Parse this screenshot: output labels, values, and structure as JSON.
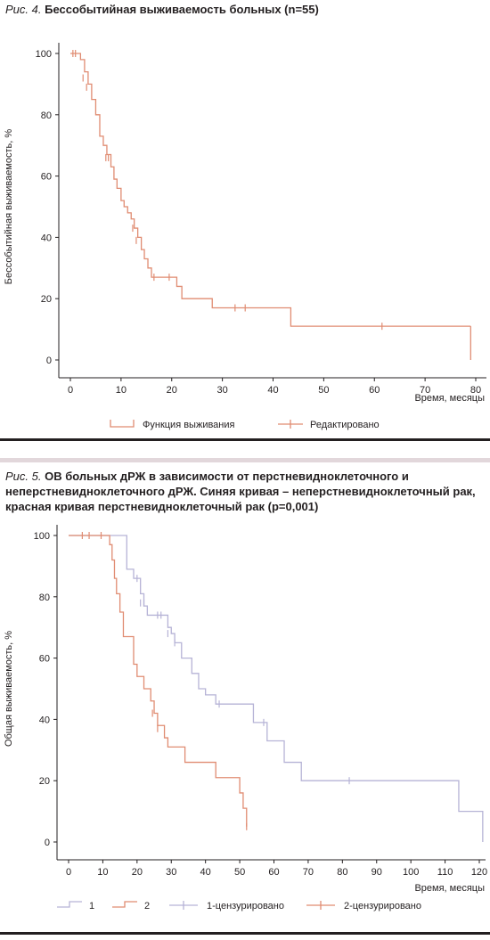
{
  "figure4": {
    "caption_prefix": "Рис. 4.",
    "caption_text": "Бессобытийная выживаемость больных (n=55)",
    "chart_data": {
      "type": "line",
      "title": "Бессобытийная выживаемость больных (n=55)",
      "xlabel": "Время, месяцы",
      "ylabel": "Бессобытийная выживаемость, %",
      "xlim": [
        0,
        80
      ],
      "ylim": [
        0,
        100
      ],
      "xticks": [
        0,
        10,
        20,
        30,
        40,
        50,
        60,
        70,
        80
      ],
      "yticks": [
        0,
        20,
        40,
        60,
        80,
        100
      ],
      "grid": false,
      "legend_position": "bottom",
      "colors": {
        "curve": "#e08c72"
      },
      "series": [
        {
          "name": "Функция выживания",
          "x": [
            0,
            2,
            2.8,
            3.5,
            4.2,
            5,
            5.8,
            6.5,
            7.2,
            8,
            8.6,
            9.2,
            10,
            10.6,
            11.3,
            12,
            12.6,
            13.3,
            14,
            14.6,
            15.3,
            16,
            16.7,
            17.4,
            20,
            21,
            22,
            28,
            43.5,
            79
          ],
          "y": [
            100,
            98,
            94,
            90,
            85,
            80,
            73,
            70,
            67,
            63,
            59,
            56,
            52,
            50,
            48,
            46,
            43,
            40,
            36,
            33,
            30,
            27,
            27,
            27,
            27,
            24,
            20,
            17,
            11,
            11
          ]
        },
        {
          "name": "Редактировано",
          "x": [
            0.5,
            1,
            2.5,
            3.2,
            7,
            7.5,
            12.3,
            13,
            16.5,
            19.5,
            32.5,
            34.5,
            61.5
          ],
          "y": [
            100,
            100,
            92,
            89,
            66,
            66,
            43,
            39,
            27,
            27,
            17,
            17,
            11
          ]
        }
      ]
    }
  },
  "figure5": {
    "caption_prefix": "Рис. 5.",
    "caption_text": "ОВ больных дРЖ в зависимости от перстневидноклеточного и неперстневидноклеточного дРЖ. Синяя кривая – неперстневидноклеточный рак, красная кривая перстневидноклеточный рак (p=0,001)",
    "chart_data": {
      "type": "line",
      "title": "",
      "xlabel": "Время, месяцы",
      "ylabel": "Общая выживаемость, %",
      "xlim": [
        0,
        120
      ],
      "ylim": [
        0,
        100
      ],
      "xticks": [
        0,
        10,
        20,
        30,
        40,
        50,
        60,
        70,
        80,
        90,
        100,
        110,
        120
      ],
      "yticks": [
        0,
        20,
        40,
        60,
        80,
        100
      ],
      "grid": false,
      "legend_position": "bottom",
      "colors": {
        "blue": "#b6b3d6",
        "red": "#e08c72"
      },
      "series": [
        {
          "name": "1",
          "x": [
            0,
            16,
            17,
            19,
            21,
            22,
            23,
            28,
            29,
            30,
            31,
            33,
            36,
            38,
            40,
            43,
            54,
            58,
            63,
            68,
            114,
            121
          ],
          "y": [
            100,
            100,
            89,
            86,
            81,
            77,
            74,
            74,
            70,
            68,
            65,
            60,
            55,
            50,
            48,
            45,
            39,
            33,
            26,
            20,
            10,
            0
          ],
          "color": "blue"
        },
        {
          "name": "2",
          "x": [
            0,
            11,
            12,
            12.7,
            13.4,
            14,
            15,
            16,
            19,
            20,
            22,
            24,
            25,
            26,
            28,
            29,
            34,
            43,
            50,
            51,
            52
          ],
          "y": [
            100,
            100,
            97,
            92,
            86,
            81,
            75,
            67,
            58,
            54,
            50,
            46,
            42,
            38,
            34,
            31,
            26,
            21,
            16,
            11,
            5
          ],
          "color": "red"
        },
        {
          "name": "1-цензурировано",
          "x": [
            20,
            21,
            22,
            26,
            27,
            29,
            31,
            44,
            57,
            82
          ],
          "y": [
            86,
            78,
            78,
            74,
            74,
            68,
            65,
            45,
            39,
            20
          ],
          "color": "blue"
        },
        {
          "name": "2-цензурировано",
          "x": [
            4,
            6,
            9.5,
            24.5,
            26,
            52
          ],
          "y": [
            100,
            100,
            100,
            42,
            37,
            5
          ],
          "color": "red"
        }
      ]
    }
  }
}
